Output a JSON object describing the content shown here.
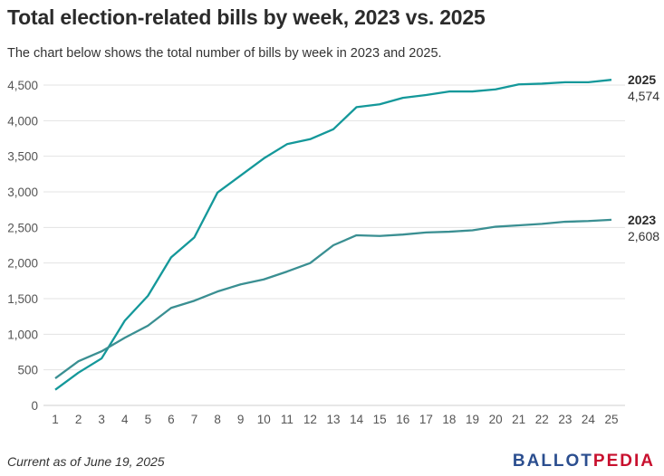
{
  "title": "Total election-related bills by week, 2023 vs. 2025",
  "subtitle": "The chart below shows the total number of bills by week in 2023 and 2025.",
  "note": "Current as of June 19, 2025",
  "logo": {
    "part1": "BALLOT",
    "part2": "PEDIA"
  },
  "colors": {
    "series_2025": "#14989a",
    "series_2023": "#3a8f92",
    "grid": "#e3e3e3",
    "axis_text": "#555555"
  },
  "chart_data": {
    "type": "line",
    "x": [
      1,
      2,
      3,
      4,
      5,
      6,
      7,
      8,
      9,
      10,
      11,
      12,
      13,
      14,
      15,
      16,
      17,
      18,
      19,
      20,
      21,
      22,
      23,
      24,
      25
    ],
    "ylim": [
      0,
      4500
    ],
    "yticks": [
      0,
      500,
      1000,
      1500,
      2000,
      2500,
      3000,
      3500,
      4000,
      4500
    ],
    "ytick_labels": [
      "0",
      "500",
      "1,000",
      "1,500",
      "2,000",
      "2,500",
      "3,000",
      "3,500",
      "4,000",
      "4,500"
    ],
    "grid": true,
    "series": [
      {
        "name": "2025",
        "end_label": "4,574",
        "values": [
          220,
          460,
          660,
          1190,
          1540,
          2080,
          2360,
          2990,
          3230,
          3470,
          3670,
          3740,
          3880,
          4190,
          4230,
          4320,
          4360,
          4410,
          4410,
          4440,
          4510,
          4520,
          4540,
          4540,
          4574
        ]
      },
      {
        "name": "2023",
        "end_label": "2,608",
        "values": [
          380,
          620,
          760,
          950,
          1120,
          1370,
          1470,
          1600,
          1700,
          1770,
          1880,
          2000,
          2250,
          2390,
          2380,
          2400,
          2430,
          2440,
          2460,
          2510,
          2530,
          2550,
          2580,
          2590,
          2608
        ]
      }
    ]
  }
}
